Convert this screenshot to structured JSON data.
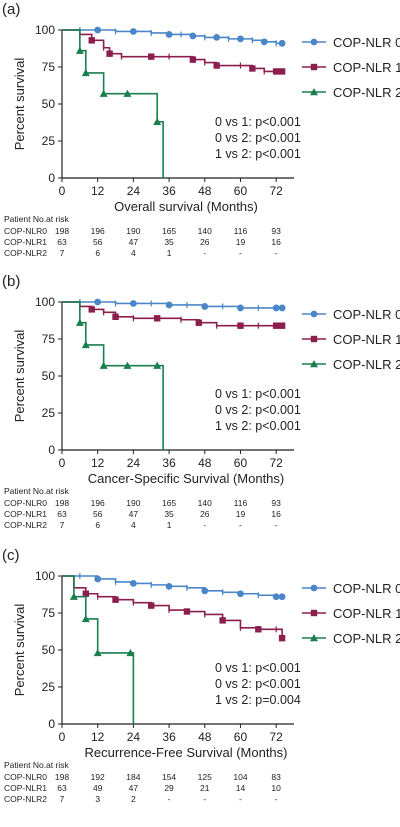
{
  "chart_data": [
    {
      "type": "line",
      "panel_label": "(a)",
      "ylabel": "Percent survival",
      "xlabel": "Overall survival (Months)",
      "xlim": [
        0,
        78
      ],
      "ylim": [
        0,
        100
      ],
      "x_ticks": [
        0,
        12,
        24,
        36,
        48,
        60,
        72
      ],
      "y_ticks": [
        0,
        25,
        50,
        75,
        100
      ],
      "legend_position": "right",
      "series": [
        {
          "name": "COP-NLR 0",
          "color": "#4a86c8",
          "marker": "circle",
          "x": [
            0,
            6,
            12,
            18,
            24,
            30,
            36,
            40,
            44,
            48,
            52,
            56,
            60,
            64,
            68,
            72,
            74
          ],
          "y": [
            100,
            100,
            100,
            99,
            99,
            98,
            97,
            97,
            96,
            95,
            95,
            94,
            94,
            93,
            92,
            91,
            91
          ]
        },
        {
          "name": "COP-NLR 1",
          "color": "#8b1e4e",
          "marker": "square",
          "x": [
            0,
            6,
            10,
            14,
            16,
            20,
            30,
            36,
            44,
            48,
            52,
            60,
            64,
            68,
            72,
            74
          ],
          "y": [
            100,
            97,
            93,
            88,
            84,
            82,
            82,
            82,
            80,
            78,
            76,
            76,
            74,
            72,
            72,
            72
          ]
        },
        {
          "name": "COP-NLR 2",
          "color": "#1a7f4e",
          "marker": "triangle",
          "x": [
            0,
            6,
            8,
            14,
            22,
            32,
            34
          ],
          "y": [
            100,
            86,
            71,
            57,
            57,
            38,
            0
          ]
        }
      ],
      "annotations": [
        "0 vs 1: p<0.001",
        "0 vs 2: p<0.001",
        "1 vs 2: p<0.001"
      ],
      "risk_table": {
        "title": "Patient No.at risk",
        "rows": [
          {
            "label": "COP-NLR0",
            "values": [
              "198",
              "196",
              "190",
              "165",
              "140",
              "116",
              "93"
            ]
          },
          {
            "label": "COP-NLR1",
            "values": [
              "63",
              "56",
              "47",
              "35",
              "26",
              "19",
              "16"
            ]
          },
          {
            "label": "COP-NLR2",
            "values": [
              "7",
              "6",
              "4",
              "1",
              "-",
              "-",
              "-"
            ]
          }
        ]
      }
    },
    {
      "type": "line",
      "panel_label": "(b)",
      "ylabel": "Percent survival",
      "xlabel": "Cancer-Specific Survival (Months)",
      "xlim": [
        0,
        78
      ],
      "ylim": [
        0,
        100
      ],
      "x_ticks": [
        0,
        12,
        24,
        36,
        48,
        60,
        72
      ],
      "y_ticks": [
        0,
        25,
        50,
        75,
        100
      ],
      "legend_position": "right",
      "series": [
        {
          "name": "COP-NLR 0",
          "color": "#4a86c8",
          "marker": "circle",
          "x": [
            0,
            6,
            12,
            18,
            24,
            30,
            36,
            42,
            48,
            54,
            60,
            66,
            72,
            74
          ],
          "y": [
            100,
            100,
            100,
            99,
            99,
            99,
            98,
            98,
            97,
            97,
            96,
            96,
            96,
            96
          ]
        },
        {
          "name": "COP-NLR 1",
          "color": "#8b1e4e",
          "marker": "square",
          "x": [
            0,
            6,
            10,
            14,
            18,
            24,
            32,
            40,
            46,
            52,
            60,
            66,
            72,
            74
          ],
          "y": [
            100,
            97,
            95,
            93,
            90,
            89,
            89,
            88,
            86,
            84,
            84,
            84,
            84,
            84
          ]
        },
        {
          "name": "COP-NLR 2",
          "color": "#1a7f4e",
          "marker": "triangle",
          "x": [
            0,
            6,
            8,
            14,
            22,
            32,
            34
          ],
          "y": [
            100,
            86,
            71,
            57,
            57,
            57,
            0
          ]
        }
      ],
      "annotations": [
        "0 vs 1: p<0.001",
        "0 vs 2: p<0.001",
        "1 vs 2: p<0.001"
      ],
      "risk_table": {
        "title": "Patient No.at risk",
        "rows": [
          {
            "label": "COP-NLR0",
            "values": [
              "198",
              "196",
              "190",
              "165",
              "140",
              "116",
              "93"
            ]
          },
          {
            "label": "COP-NLR1",
            "values": [
              "63",
              "56",
              "47",
              "35",
              "26",
              "19",
              "16"
            ]
          },
          {
            "label": "COP-NLR2",
            "values": [
              "7",
              "6",
              "4",
              "1",
              "-",
              "-",
              "-"
            ]
          }
        ]
      }
    },
    {
      "type": "line",
      "panel_label": "(c)",
      "ylabel": "Percent survival",
      "xlabel": "Recurrence-Free Survival (Months)",
      "xlim": [
        0,
        78
      ],
      "ylim": [
        0,
        100
      ],
      "x_ticks": [
        0,
        12,
        24,
        36,
        48,
        60,
        72
      ],
      "y_ticks": [
        0,
        25,
        50,
        75,
        100
      ],
      "legend_position": "right",
      "series": [
        {
          "name": "COP-NLR 0",
          "color": "#4a86c8",
          "marker": "circle",
          "x": [
            0,
            6,
            12,
            18,
            24,
            30,
            36,
            42,
            48,
            54,
            60,
            66,
            72,
            74
          ],
          "y": [
            100,
            100,
            98,
            96,
            95,
            94,
            93,
            92,
            90,
            89,
            88,
            87,
            86,
            86
          ]
        },
        {
          "name": "COP-NLR 1",
          "color": "#8b1e4e",
          "marker": "square",
          "x": [
            0,
            4,
            8,
            12,
            18,
            24,
            30,
            36,
            42,
            48,
            54,
            60,
            66,
            72,
            74
          ],
          "y": [
            100,
            92,
            88,
            86,
            84,
            82,
            80,
            77,
            76,
            74,
            70,
            65,
            64,
            64,
            58
          ]
        },
        {
          "name": "COP-NLR 2",
          "color": "#1a7f4e",
          "marker": "triangle",
          "x": [
            0,
            4,
            8,
            12,
            23,
            24
          ],
          "y": [
            100,
            86,
            71,
            48,
            48,
            0
          ]
        }
      ],
      "annotations": [
        "0 vs 1: p<0.001",
        "0 vs 2: p<0.001",
        "1 vs 2: p=0.004"
      ],
      "risk_table": {
        "title": "Patient No.at risk",
        "rows": [
          {
            "label": "COP-NLR0",
            "values": [
              "198",
              "192",
              "184",
              "154",
              "125",
              "104",
              "83"
            ]
          },
          {
            "label": "COP-NLR1",
            "values": [
              "63",
              "49",
              "47",
              "29",
              "21",
              "14",
              "10"
            ]
          },
          {
            "label": "COP-NLR2",
            "values": [
              "7",
              "3",
              "2",
              "-",
              "-",
              "-",
              "-"
            ]
          }
        ]
      }
    }
  ]
}
